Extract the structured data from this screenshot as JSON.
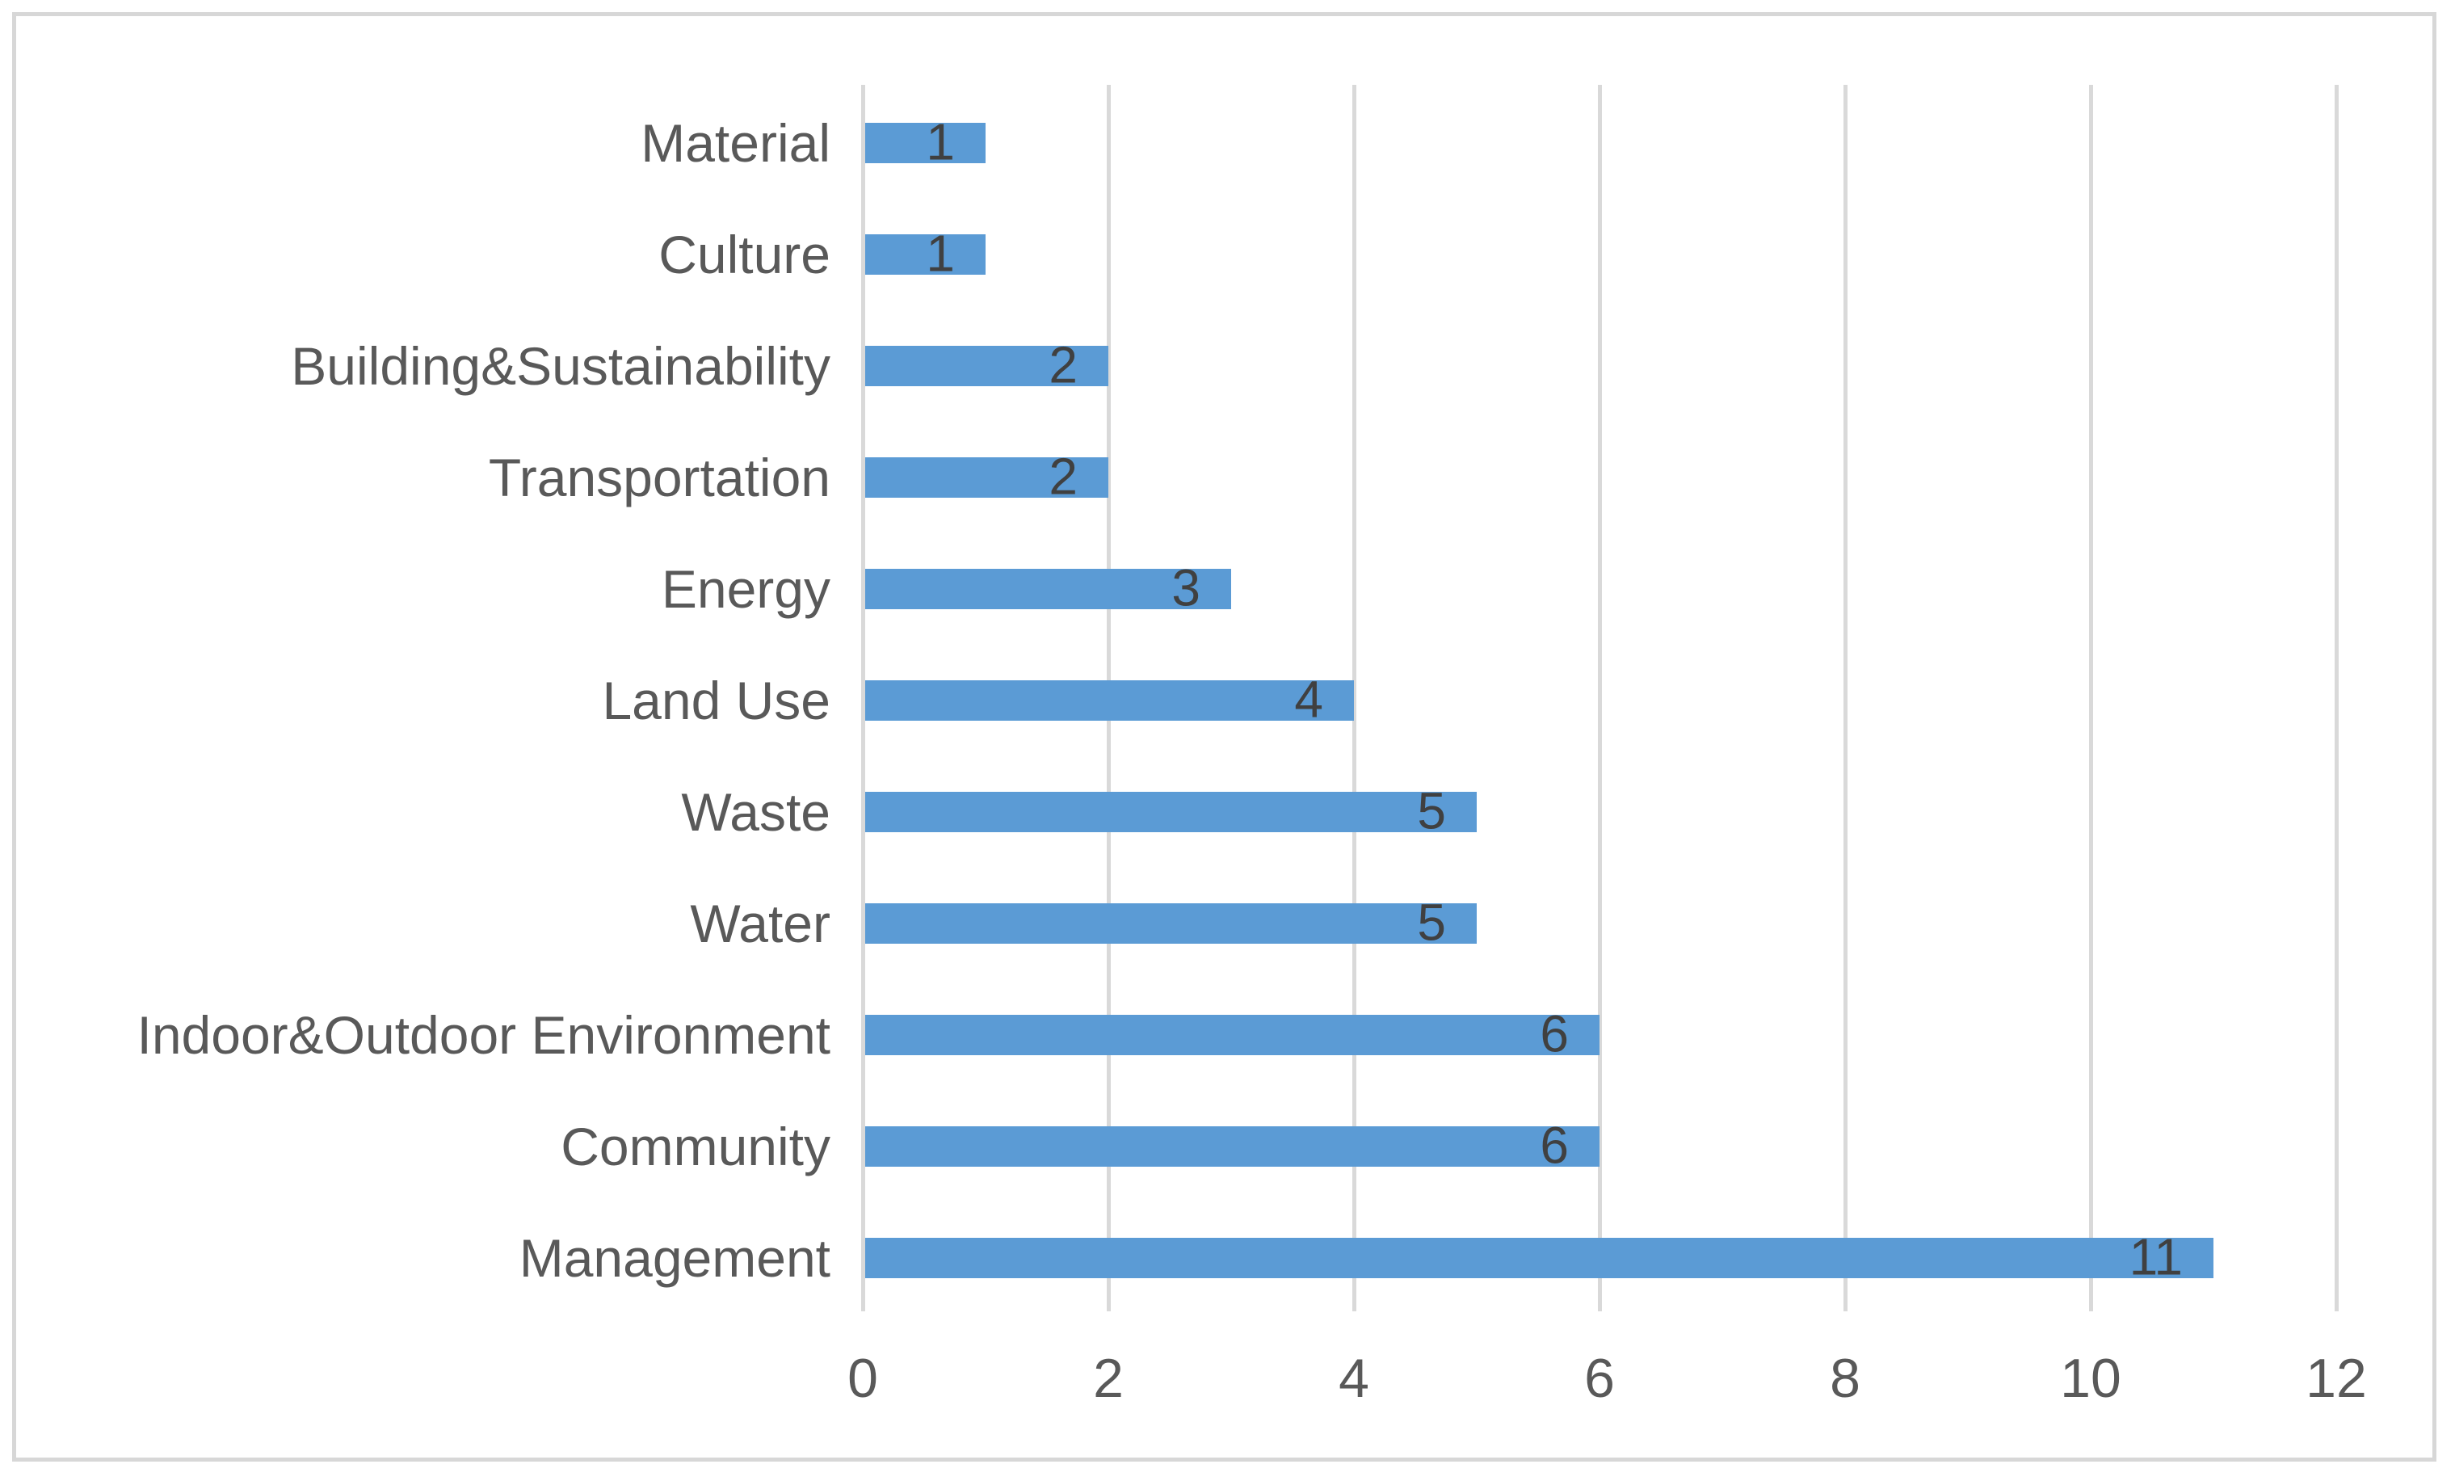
{
  "chart_data": {
    "type": "bar",
    "orientation": "horizontal",
    "title": "",
    "xlabel": "",
    "ylabel": "",
    "categories": [
      "Material",
      "Culture",
      "Building&Sustainability",
      "Transportation",
      "Energy",
      "Land Use",
      "Waste",
      "Water",
      "Indoor&Outdoor Environment",
      "Community",
      "Management"
    ],
    "values": [
      1,
      1,
      2,
      2,
      3,
      4,
      5,
      5,
      6,
      6,
      11
    ],
    "xlim": [
      0,
      12
    ],
    "x_ticks": [
      0,
      2,
      4,
      6,
      8,
      10,
      12
    ],
    "grid": true,
    "legend": "none",
    "data_label_position": "inside-end",
    "colors": {
      "bar": "#5b9bd5",
      "gridline": "#d9d9d9",
      "frame_border": "#d7d7d7",
      "axis_text": "#595959",
      "data_label_text": "#404040",
      "background": "#ffffff"
    }
  }
}
